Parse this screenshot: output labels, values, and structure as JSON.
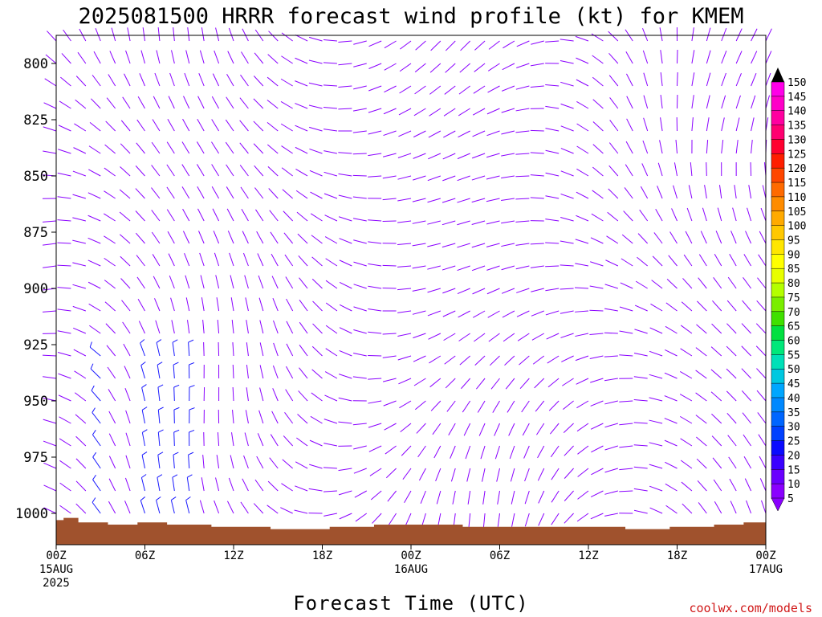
{
  "chart_data": {
    "type": "wind-barb time-height profile",
    "title": "2025081500 HRRR forecast wind profile (kt) for KMEM",
    "xlabel": "Forecast Time (UTC)",
    "ylabel": "",
    "credit": "coolwx.com/models",
    "ylim_hpa": [
      1012,
      788
    ],
    "y_ticks": [
      800,
      825,
      850,
      875,
      900,
      925,
      950,
      975,
      1000
    ],
    "y_tick_labels": [
      "800",
      "825",
      "850",
      "875",
      "900",
      "925",
      "950",
      "975",
      "1000"
    ],
    "x_range_hours": [
      0,
      48
    ],
    "x_ticks": [
      {
        "hour": 0,
        "lines": [
          "00Z",
          "15AUG",
          "2025"
        ]
      },
      {
        "hour": 6,
        "lines": [
          "06Z"
        ]
      },
      {
        "hour": 12,
        "lines": [
          "12Z"
        ]
      },
      {
        "hour": 18,
        "lines": [
          "18Z"
        ]
      },
      {
        "hour": 24,
        "lines": [
          "00Z",
          "16AUG"
        ]
      },
      {
        "hour": 30,
        "lines": [
          "06Z"
        ]
      },
      {
        "hour": 36,
        "lines": [
          "12Z"
        ]
      },
      {
        "hour": 42,
        "lines": [
          "18Z"
        ]
      },
      {
        "hour": 48,
        "lines": [
          "00Z",
          "17AUG"
        ]
      }
    ],
    "barb_levels_hpa": [
      790,
      800,
      810,
      820,
      830,
      840,
      850,
      860,
      870,
      880,
      890,
      900,
      910,
      920,
      930,
      940,
      950,
      960,
      970,
      980,
      990,
      1000
    ],
    "terrain_surface_pressure_hpa": [
      1003,
      1002,
      1004,
      1004,
      1005,
      1005,
      1004,
      1004,
      1005,
      1005,
      1005,
      1006,
      1006,
      1006,
      1006,
      1007,
      1007,
      1007,
      1007,
      1006,
      1006,
      1006,
      1005,
      1005,
      1005,
      1005,
      1005,
      1005,
      1006,
      1006,
      1006,
      1006,
      1006,
      1006,
      1006,
      1006,
      1006,
      1006,
      1006,
      1007,
      1007,
      1007,
      1006,
      1006,
      1006,
      1005,
      1005,
      1004,
      1004
    ],
    "speed_colorbar": {
      "levels": [
        5,
        10,
        15,
        20,
        25,
        30,
        35,
        40,
        45,
        50,
        55,
        60,
        65,
        70,
        75,
        80,
        85,
        90,
        95,
        100,
        105,
        110,
        115,
        120,
        125,
        130,
        135,
        140,
        145,
        150
      ],
      "colors": [
        "#8a00ff",
        "#6a00ff",
        "#3a00ff",
        "#0a0aff",
        "#0040ff",
        "#0066ff",
        "#0088ff",
        "#00a6ff",
        "#00c8e0",
        "#00e0b8",
        "#00e87a",
        "#00e040",
        "#40e000",
        "#7aee00",
        "#b4ff00",
        "#e8ff00",
        "#ffff00",
        "#ffe600",
        "#ffc800",
        "#ffaa00",
        "#ff8c00",
        "#ff6a00",
        "#ff4600",
        "#ff1e00",
        "#ff0030",
        "#ff0070",
        "#ff00a0",
        "#ff00c8",
        "#ff00e8",
        "#000000"
      ]
    },
    "colors": {
      "calm_barb": "#8a00ff",
      "moderate_barb": "#1a1aff",
      "terrain": "#a0522d",
      "axis": "#000000",
      "credit": "#d01818"
    }
  }
}
